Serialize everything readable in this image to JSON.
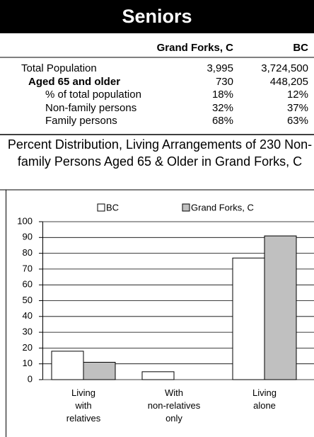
{
  "header": {
    "title": "Seniors"
  },
  "table": {
    "columns": [
      "Grand Forks, C",
      "BC"
    ],
    "rows": [
      [
        "Total Population",
        "3,995",
        "3,724,500"
      ],
      [
        "Aged 65 and older",
        "730",
        "448,205"
      ],
      [
        "% of total population",
        "18%",
        "12%"
      ],
      [
        "Non-family persons",
        "32%",
        "37%"
      ],
      [
        "Family persons",
        "68%",
        "63%"
      ]
    ]
  },
  "chart_data": {
    "type": "bar",
    "title": "Percent Distribution, Living Arrangements of 230 Non-family Persons Aged 65 & Older in Grand Forks, C",
    "categories": [
      "Living\nwith\nrelatives",
      "With\nnon-relatives\nonly",
      "Living\nalone"
    ],
    "series": [
      {
        "name": "BC",
        "color": "#ffffff",
        "values": [
          18,
          5,
          77
        ]
      },
      {
        "name": "Grand Forks, C",
        "color": "#c0c0c0",
        "values": [
          11,
          0,
          91
        ]
      }
    ],
    "ylim": [
      0,
      100
    ],
    "yticks": [
      0,
      10,
      20,
      30,
      40,
      50,
      60,
      70,
      80,
      90,
      100
    ],
    "grid": true
  }
}
